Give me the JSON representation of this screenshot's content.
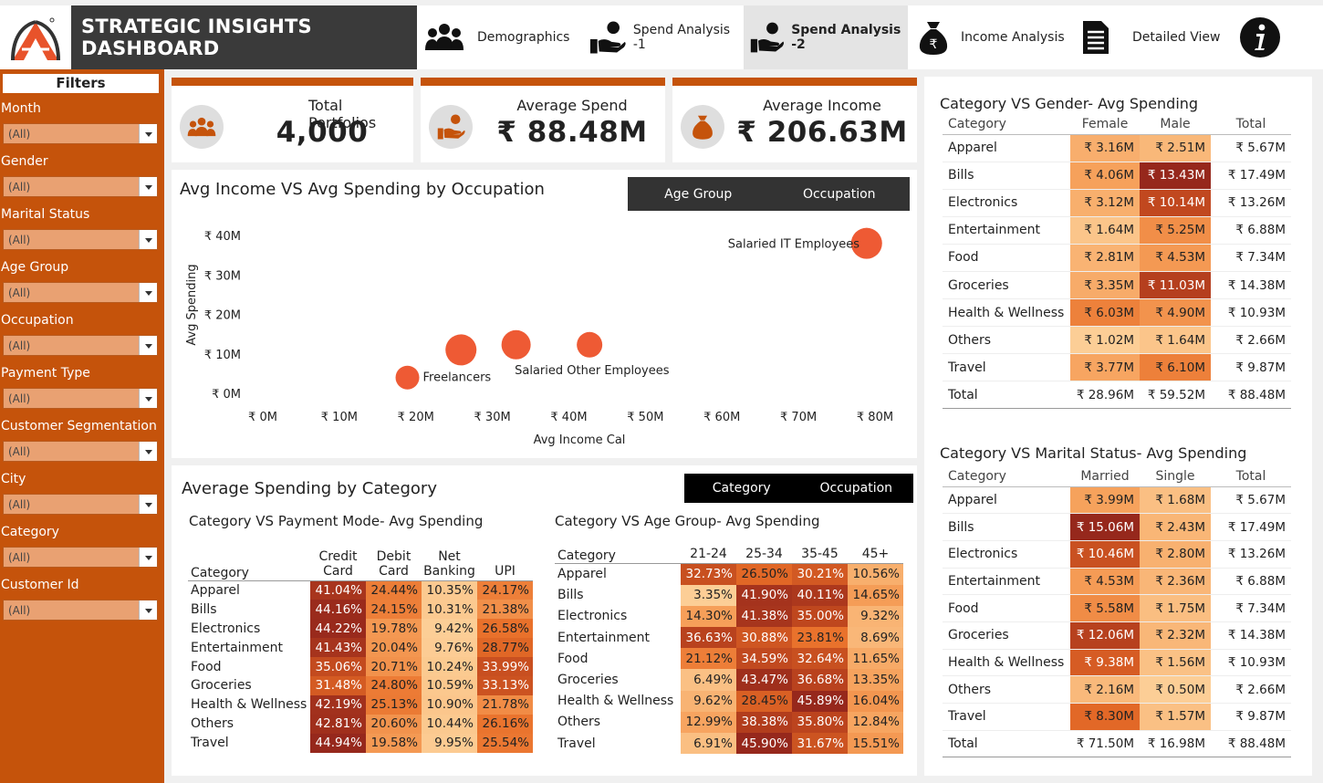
{
  "header": {
    "title": "STRATEGIC INSIGHTS DASHBOARD",
    "tabs": [
      {
        "label": "Demographics",
        "icon": "people-icon"
      },
      {
        "label": "Spend Analysis -1",
        "icon": "hand-coin-icon"
      },
      {
        "label": "Spend Analysis -2",
        "icon": "hand-coin-icon",
        "active": true
      },
      {
        "label": "Income Analysis",
        "icon": "money-bag-icon"
      },
      {
        "label": "Detailed View",
        "icon": "document-icon"
      }
    ],
    "info_icon": "info-icon",
    "accent": "#c5530b"
  },
  "filters": {
    "title": "Filters",
    "items": [
      {
        "label": "Month",
        "value": "(All)"
      },
      {
        "label": "Gender",
        "value": "(All)"
      },
      {
        "label": "Marital Status",
        "value": "(All)"
      },
      {
        "label": "Age Group",
        "value": "(All)"
      },
      {
        "label": "Occupation",
        "value": "(All)"
      },
      {
        "label": "Payment Type",
        "value": "(All)"
      },
      {
        "label": "Customer Segmentation",
        "value": "(All)"
      },
      {
        "label": "City",
        "value": "(All)"
      },
      {
        "label": "Category",
        "value": "(All)"
      },
      {
        "label": "Customer Id",
        "value": "(All)"
      }
    ]
  },
  "kpis": [
    {
      "label": "Total Portfolios",
      "value": "4,000"
    },
    {
      "label": "Average Spend",
      "value": "₹ 88.48M"
    },
    {
      "label": "Average Income",
      "value": "₹ 206.63M"
    }
  ],
  "scatter": {
    "title": "Avg Income VS Avg Spending by Occupation",
    "toggle": [
      "Age Group",
      "Occupation"
    ]
  },
  "chart_data": {
    "type": "scatter",
    "title": "Avg Income VS Avg Spending by Occupation",
    "xlabel": "Avg Income Cal",
    "ylabel": "Avg Spending",
    "xlim": [
      0,
      80
    ],
    "ylim": [
      0,
      40
    ],
    "x_ticks": [
      "₹ 0M",
      "₹ 10M",
      "₹ 20M",
      "₹ 30M",
      "₹ 40M",
      "₹ 50M",
      "₹ 60M",
      "₹ 70M",
      "₹ 80M"
    ],
    "y_ticks": [
      "₹ 0M",
      "₹ 10M",
      "₹ 20M",
      "₹ 30M",
      "₹ 40M"
    ],
    "points": [
      {
        "label": "Freelancers",
        "x": 18.9,
        "y": 4
      },
      {
        "label": "",
        "x": 25.9,
        "y": 11
      },
      {
        "label": "",
        "x": 33.1,
        "y": 12.3
      },
      {
        "label": "Salaried Other Employees",
        "x": 42.7,
        "y": 12.3
      },
      {
        "label": "Salaried IT Employees",
        "x": 78.9,
        "y": 38
      }
    ],
    "color": "#ee5a34"
  },
  "avg_category": {
    "title": "Average Spending by Category",
    "toggle": [
      "Category",
      "Occupation"
    ]
  },
  "payment_mode": {
    "title": "Category VS Payment Mode- Avg Spending",
    "row_header": "Category",
    "columns": [
      [
        "Credit",
        "Card"
      ],
      [
        "Debit",
        "Card"
      ],
      [
        "Net",
        "Banking"
      ],
      [
        "UPI",
        ""
      ]
    ],
    "rows": [
      {
        "category": "Apparel",
        "values": [
          "41.04%",
          "24.44%",
          "10.35%",
          "24.17%"
        ]
      },
      {
        "category": "Bills",
        "values": [
          "44.16%",
          "24.15%",
          "10.31%",
          "21.38%"
        ]
      },
      {
        "category": "Electronics",
        "values": [
          "44.22%",
          "19.78%",
          "9.42%",
          "26.58%"
        ]
      },
      {
        "category": "Entertainment",
        "values": [
          "41.43%",
          "20.04%",
          "9.76%",
          "28.77%"
        ]
      },
      {
        "category": "Food",
        "values": [
          "35.06%",
          "20.71%",
          "10.24%",
          "33.99%"
        ]
      },
      {
        "category": "Groceries",
        "values": [
          "31.48%",
          "24.80%",
          "10.59%",
          "33.13%"
        ]
      },
      {
        "category": "Health & Wellness",
        "values": [
          "42.19%",
          "25.13%",
          "10.90%",
          "21.78%"
        ]
      },
      {
        "category": "Others",
        "values": [
          "42.81%",
          "20.60%",
          "10.44%",
          "26.16%"
        ]
      },
      {
        "category": "Travel",
        "values": [
          "44.94%",
          "19.58%",
          "9.95%",
          "25.54%"
        ]
      }
    ]
  },
  "age_group": {
    "title": "Category VS Age Group- Avg Spending",
    "row_header": "Category",
    "columns": [
      "21-24",
      "25-34",
      "35-45",
      "45+"
    ],
    "rows": [
      {
        "category": "Apparel",
        "values": [
          "32.73%",
          "26.50%",
          "30.21%",
          "10.56%"
        ]
      },
      {
        "category": "Bills",
        "values": [
          "3.35%",
          "41.90%",
          "40.11%",
          "14.65%"
        ]
      },
      {
        "category": "Electronics",
        "values": [
          "14.30%",
          "41.38%",
          "35.00%",
          "9.32%"
        ]
      },
      {
        "category": "Entertainment",
        "values": [
          "36.63%",
          "30.88%",
          "23.81%",
          "8.69%"
        ]
      },
      {
        "category": "Food",
        "values": [
          "21.12%",
          "34.59%",
          "32.64%",
          "11.65%"
        ]
      },
      {
        "category": "Groceries",
        "values": [
          "6.49%",
          "43.47%",
          "36.68%",
          "13.35%"
        ]
      },
      {
        "category": "Health & Wellness",
        "values": [
          "9.62%",
          "28.45%",
          "45.89%",
          "16.04%"
        ]
      },
      {
        "category": "Others",
        "values": [
          "12.99%",
          "38.38%",
          "35.80%",
          "12.84%"
        ]
      },
      {
        "category": "Travel",
        "values": [
          "6.91%",
          "45.90%",
          "31.67%",
          "15.51%"
        ]
      }
    ]
  },
  "gender": {
    "title": "Category VS Gender- Avg Spending",
    "columns": [
      "Category",
      "Female",
      "Male",
      "Total"
    ],
    "rows": [
      {
        "category": "Apparel",
        "values": [
          "₹ 3.16M",
          "₹ 2.51M",
          "₹ 5.67M"
        ]
      },
      {
        "category": "Bills",
        "values": [
          "₹ 4.06M",
          "₹ 13.43M",
          "₹ 17.49M"
        ]
      },
      {
        "category": "Electronics",
        "values": [
          "₹ 3.12M",
          "₹ 10.14M",
          "₹ 13.26M"
        ]
      },
      {
        "category": "Entertainment",
        "values": [
          "₹ 1.64M",
          "₹ 5.25M",
          "₹ 6.88M"
        ]
      },
      {
        "category": "Food",
        "values": [
          "₹ 2.81M",
          "₹ 4.53M",
          "₹ 7.34M"
        ]
      },
      {
        "category": "Groceries",
        "values": [
          "₹ 3.35M",
          "₹ 11.03M",
          "₹ 14.38M"
        ]
      },
      {
        "category": "Health & Wellness",
        "values": [
          "₹ 6.03M",
          "₹ 4.90M",
          "₹ 10.93M"
        ]
      },
      {
        "category": "Others",
        "values": [
          "₹ 1.02M",
          "₹ 1.64M",
          "₹ 2.66M"
        ]
      },
      {
        "category": "Travel",
        "values": [
          "₹ 3.77M",
          "₹ 6.10M",
          "₹ 9.87M"
        ]
      }
    ],
    "total": {
      "category": "Total",
      "values": [
        "₹ 28.96M",
        "₹ 59.52M",
        "₹ 88.48M"
      ]
    }
  },
  "marital": {
    "title": "Category VS Marital Status- Avg Spending",
    "columns": [
      "Category",
      "Married",
      "Single",
      "Total"
    ],
    "rows": [
      {
        "category": "Apparel",
        "values": [
          "₹ 3.99M",
          "₹ 1.68M",
          "₹ 5.67M"
        ]
      },
      {
        "category": "Bills",
        "values": [
          "₹ 15.06M",
          "₹ 2.43M",
          "₹ 17.49M"
        ]
      },
      {
        "category": "Electronics",
        "values": [
          "₹ 10.46M",
          "₹ 2.80M",
          "₹ 13.26M"
        ]
      },
      {
        "category": "Entertainment",
        "values": [
          "₹ 4.53M",
          "₹ 2.36M",
          "₹ 6.88M"
        ]
      },
      {
        "category": "Food",
        "values": [
          "₹ 5.58M",
          "₹ 1.75M",
          "₹ 7.34M"
        ]
      },
      {
        "category": "Groceries",
        "values": [
          "₹ 12.06M",
          "₹ 2.32M",
          "₹ 14.38M"
        ]
      },
      {
        "category": "Health & Wellness",
        "values": [
          "₹ 9.38M",
          "₹ 1.56M",
          "₹ 10.93M"
        ]
      },
      {
        "category": "Others",
        "values": [
          "₹ 2.16M",
          "₹ 0.50M",
          "₹ 2.66M"
        ]
      },
      {
        "category": "Travel",
        "values": [
          "₹ 8.30M",
          "₹ 1.57M",
          "₹ 9.87M"
        ]
      }
    ],
    "total": {
      "category": "Total",
      "values": [
        "₹ 71.50M",
        "₹ 16.98M",
        "₹ 88.48M"
      ]
    }
  }
}
